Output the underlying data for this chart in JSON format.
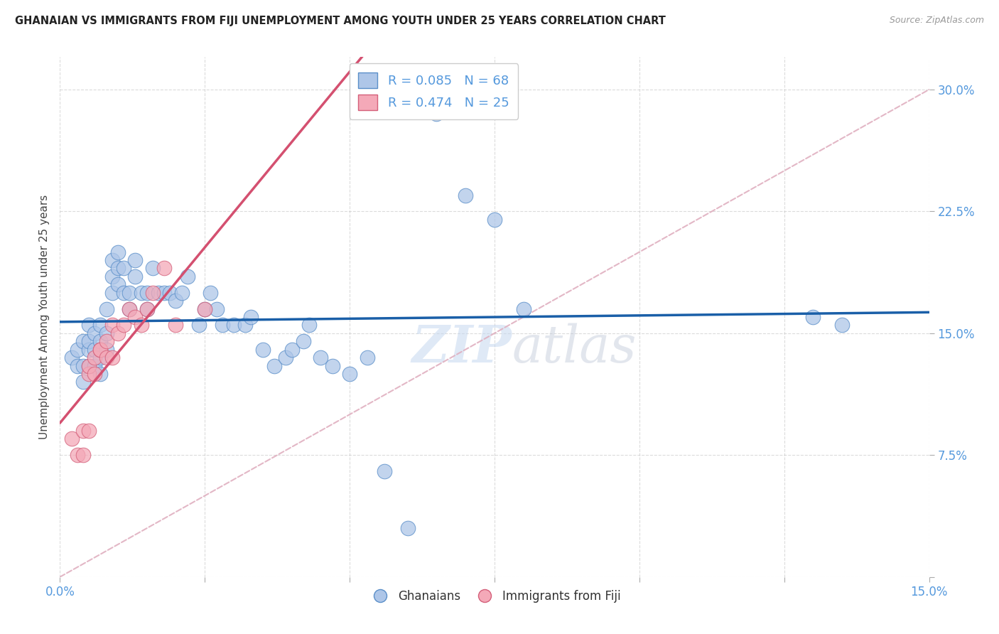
{
  "title": "GHANAIAN VS IMMIGRANTS FROM FIJI UNEMPLOYMENT AMONG YOUTH UNDER 25 YEARS CORRELATION CHART",
  "source": "Source: ZipAtlas.com",
  "ylabel_label": "Unemployment Among Youth under 25 years",
  "xlim": [
    0.0,
    0.15
  ],
  "ylim": [
    0.0,
    0.32
  ],
  "legend_label_ghanaian": "Ghanaians",
  "legend_label_fiji": "Immigrants from Fiji",
  "watermark_zip": "ZIP",
  "watermark_atlas": "atlas",
  "scatter_blue_color": "#aec6e8",
  "scatter_blue_edge": "#5b8fc9",
  "scatter_pink_color": "#f4a9b8",
  "scatter_pink_edge": "#d4607a",
  "blue_line_color": "#1a5fa8",
  "pink_line_color": "#d45070",
  "dashed_line_color": "#e0b0c0",
  "axis_tick_color": "#5599dd",
  "background_color": "#ffffff",
  "grid_color": "#cccccc",
  "title_color": "#222222",
  "source_color": "#999999",
  "ylabel_color": "#444444",
  "blue_scatter_x": [
    0.002,
    0.003,
    0.003,
    0.004,
    0.004,
    0.004,
    0.005,
    0.005,
    0.005,
    0.005,
    0.006,
    0.006,
    0.006,
    0.007,
    0.007,
    0.007,
    0.007,
    0.008,
    0.008,
    0.008,
    0.009,
    0.009,
    0.009,
    0.01,
    0.01,
    0.01,
    0.011,
    0.011,
    0.012,
    0.012,
    0.013,
    0.013,
    0.014,
    0.015,
    0.015,
    0.016,
    0.017,
    0.018,
    0.019,
    0.02,
    0.021,
    0.022,
    0.024,
    0.025,
    0.026,
    0.027,
    0.028,
    0.03,
    0.032,
    0.033,
    0.035,
    0.037,
    0.039,
    0.04,
    0.042,
    0.043,
    0.045,
    0.047,
    0.05,
    0.053,
    0.056,
    0.06,
    0.065,
    0.07,
    0.075,
    0.08,
    0.13,
    0.135
  ],
  "blue_scatter_y": [
    0.135,
    0.13,
    0.14,
    0.12,
    0.13,
    0.145,
    0.14,
    0.13,
    0.145,
    0.155,
    0.13,
    0.14,
    0.15,
    0.125,
    0.135,
    0.145,
    0.155,
    0.14,
    0.15,
    0.165,
    0.175,
    0.185,
    0.195,
    0.18,
    0.19,
    0.2,
    0.175,
    0.19,
    0.165,
    0.175,
    0.185,
    0.195,
    0.175,
    0.165,
    0.175,
    0.19,
    0.175,
    0.175,
    0.175,
    0.17,
    0.175,
    0.185,
    0.155,
    0.165,
    0.175,
    0.165,
    0.155,
    0.155,
    0.155,
    0.16,
    0.14,
    0.13,
    0.135,
    0.14,
    0.145,
    0.155,
    0.135,
    0.13,
    0.125,
    0.135,
    0.065,
    0.03,
    0.285,
    0.235,
    0.22,
    0.165,
    0.16,
    0.155
  ],
  "pink_scatter_x": [
    0.002,
    0.003,
    0.004,
    0.004,
    0.005,
    0.005,
    0.005,
    0.006,
    0.006,
    0.007,
    0.007,
    0.008,
    0.008,
    0.009,
    0.009,
    0.01,
    0.011,
    0.012,
    0.013,
    0.014,
    0.015,
    0.016,
    0.018,
    0.02,
    0.025
  ],
  "pink_scatter_y": [
    0.085,
    0.075,
    0.09,
    0.075,
    0.125,
    0.13,
    0.09,
    0.135,
    0.125,
    0.14,
    0.14,
    0.135,
    0.145,
    0.155,
    0.135,
    0.15,
    0.155,
    0.165,
    0.16,
    0.155,
    0.165,
    0.175,
    0.19,
    0.155,
    0.165
  ],
  "r_blue": 0.085,
  "n_blue": 68,
  "r_pink": 0.474,
  "n_pink": 25
}
